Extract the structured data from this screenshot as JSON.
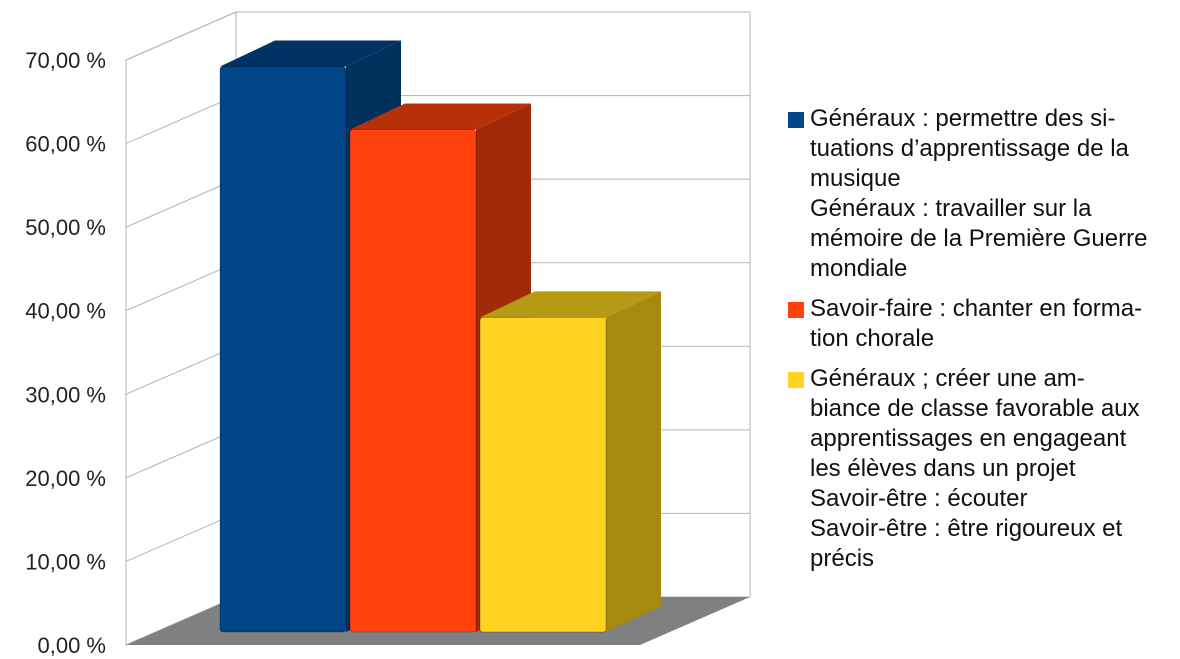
{
  "chart_data": {
    "type": "bar",
    "categories": [
      "Généraux : permettre des si-tuations d’apprentissage de la musique / Généraux : travailler sur la mémoire de la Première Guerre mondiale",
      "Savoir-faire : chanter en forma-tion chorale",
      "Généraux ; créer une am-biance de classe favorable aux apprentissages en engageant les élèves dans un projet / Savoir-être : écouter / Savoir-être : être rigoureux et précis"
    ],
    "values": [
      69.2,
      61.5,
      38.5
    ],
    "ylim": [
      0,
      70
    ],
    "yticks": [
      "0,00 %",
      "10,00 %",
      "20,00 %",
      "30,00 %",
      "40,00 %",
      "50,00 %",
      "60,00 %",
      "70,00 %"
    ],
    "grid": true,
    "legend_position": "right",
    "colors": [
      "#004586",
      "#ff420e",
      "#ffd320"
    ],
    "side_colors": [
      "#00305c",
      "#a12a09",
      "#a6890f"
    ],
    "top_colors": [
      "#003264",
      "#b8300a",
      "#b59a14"
    ],
    "floor_color": "#808080"
  },
  "legend": [
    {
      "color": "#004586",
      "lines": [
        "Généraux : permettre des si-",
        "tuations d’apprentissage de la",
        "musique",
        "Généraux : travailler sur la",
        "mémoire de la Première Guerre",
        "mondiale"
      ]
    },
    {
      "color": "#ff420e",
      "lines": [
        "Savoir-faire : chanter en forma-",
        "tion chorale"
      ]
    },
    {
      "color": "#ffd320",
      "lines": [
        "Généraux ; créer une am-",
        "biance de classe favorable aux",
        "apprentissages en engageant",
        "les élèves dans un projet",
        "Savoir-être : écouter",
        "Savoir-être : être rigoureux et",
        "précis"
      ]
    }
  ]
}
